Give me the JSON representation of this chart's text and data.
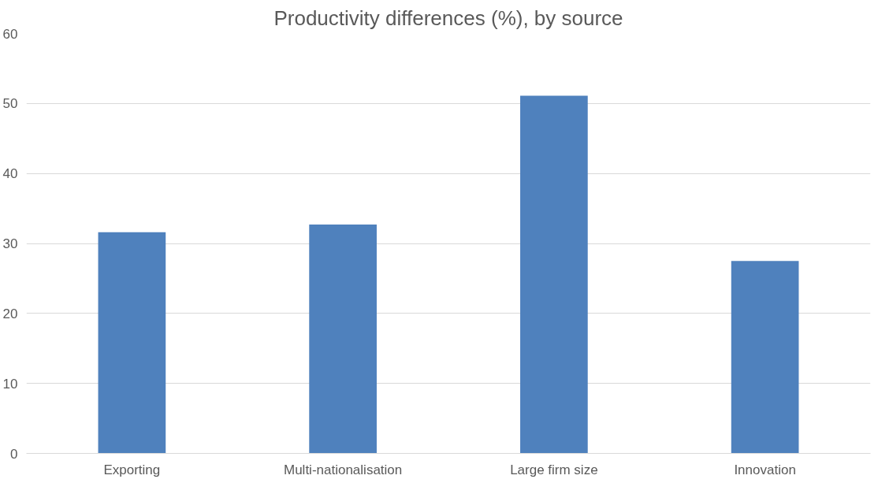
{
  "chart_data": {
    "type": "bar",
    "title": "Productivity differences (%), by source",
    "categories": [
      "Exporting",
      "Multi-nationalisation",
      "Large firm size",
      "Innovation"
    ],
    "values": [
      31.6,
      32.7,
      51.1,
      27.5
    ],
    "color": "#4f81bd",
    "ylim": [
      0,
      60
    ],
    "yticks": [
      0,
      10,
      20,
      30,
      40,
      50,
      60
    ],
    "grid": "y"
  }
}
